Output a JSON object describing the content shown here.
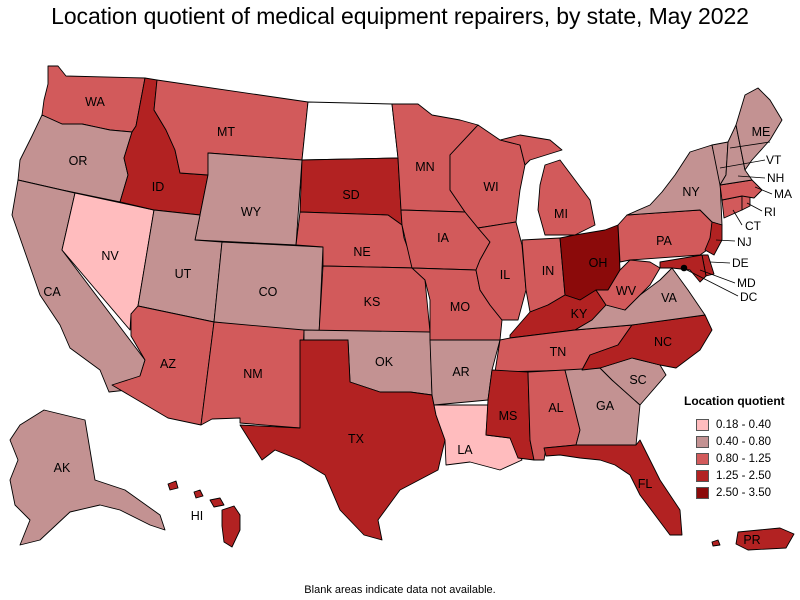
{
  "title": "Location quotient of medical equipment repairers, by state, May 2022",
  "footnote": "Blank areas indicate data not available.",
  "legend": {
    "title": "Location quotient",
    "items": [
      {
        "label": "0.18 - 0.40",
        "color": "#ffbcbe"
      },
      {
        "label": "0.40 - 0.80",
        "color": "#c39292"
      },
      {
        "label": "0.80 - 1.25",
        "color": "#d25a5b"
      },
      {
        "label": "1.25 - 2.50",
        "color": "#b22222"
      },
      {
        "label": "2.50 - 3.50",
        "color": "#8b0a0a"
      }
    ]
  },
  "states": {
    "WA": {
      "label": "WA",
      "class": 2
    },
    "OR": {
      "label": "OR",
      "class": 1
    },
    "CA": {
      "label": "CA",
      "class": 1
    },
    "NV": {
      "label": "NV",
      "class": 0
    },
    "ID": {
      "label": "ID",
      "class": 3
    },
    "MT": {
      "label": "MT",
      "class": 2
    },
    "WY": {
      "label": "WY",
      "class": 1
    },
    "UT": {
      "label": "UT",
      "class": 1
    },
    "CO": {
      "label": "CO",
      "class": 1
    },
    "AZ": {
      "label": "AZ",
      "class": 2
    },
    "NM": {
      "label": "NM",
      "class": 2
    },
    "ND": {
      "label": "",
      "class": -1
    },
    "SD": {
      "label": "SD",
      "class": 3
    },
    "NE": {
      "label": "NE",
      "class": 2
    },
    "KS": {
      "label": "KS",
      "class": 2
    },
    "OK": {
      "label": "OK",
      "class": 1
    },
    "TX": {
      "label": "TX",
      "class": 3
    },
    "MN": {
      "label": "MN",
      "class": 2
    },
    "IA": {
      "label": "IA",
      "class": 2
    },
    "MO": {
      "label": "MO",
      "class": 2
    },
    "AR": {
      "label": "AR",
      "class": 1
    },
    "LA": {
      "label": "LA",
      "class": 0
    },
    "WI": {
      "label": "WI",
      "class": 2
    },
    "IL": {
      "label": "IL",
      "class": 2
    },
    "MI": {
      "label": "MI",
      "class": 2
    },
    "IN": {
      "label": "IN",
      "class": 2
    },
    "OH": {
      "label": "OH",
      "class": 4
    },
    "KY": {
      "label": "KY",
      "class": 3
    },
    "TN": {
      "label": "TN",
      "class": 2
    },
    "MS": {
      "label": "MS",
      "class": 3
    },
    "AL": {
      "label": "AL",
      "class": 2
    },
    "GA": {
      "label": "GA",
      "class": 1
    },
    "FL": {
      "label": "FL",
      "class": 3
    },
    "SC": {
      "label": "SC",
      "class": 1
    },
    "NC": {
      "label": "NC",
      "class": 3
    },
    "VA": {
      "label": "VA",
      "class": 1
    },
    "WV": {
      "label": "WV",
      "class": 2
    },
    "PA": {
      "label": "PA",
      "class": 2
    },
    "NY": {
      "label": "NY",
      "class": 1
    },
    "ME": {
      "label": "ME",
      "class": 1
    },
    "VT": {
      "label": "VT",
      "class": 1
    },
    "NH": {
      "label": "NH",
      "class": 1
    },
    "MA": {
      "label": "MA",
      "class": 2
    },
    "RI": {
      "label": "RI",
      "class": 2
    },
    "CT": {
      "label": "CT",
      "class": 2
    },
    "NJ": {
      "label": "NJ",
      "class": 3
    },
    "DE": {
      "label": "DE",
      "class": 3
    },
    "MD": {
      "label": "MD",
      "class": 3
    },
    "DC": {
      "label": "DC",
      "class": 4
    },
    "AK": {
      "label": "AK",
      "class": 1
    },
    "HI": {
      "label": "HI",
      "class": 3
    },
    "PR": {
      "label": "PR",
      "class": 3
    }
  }
}
